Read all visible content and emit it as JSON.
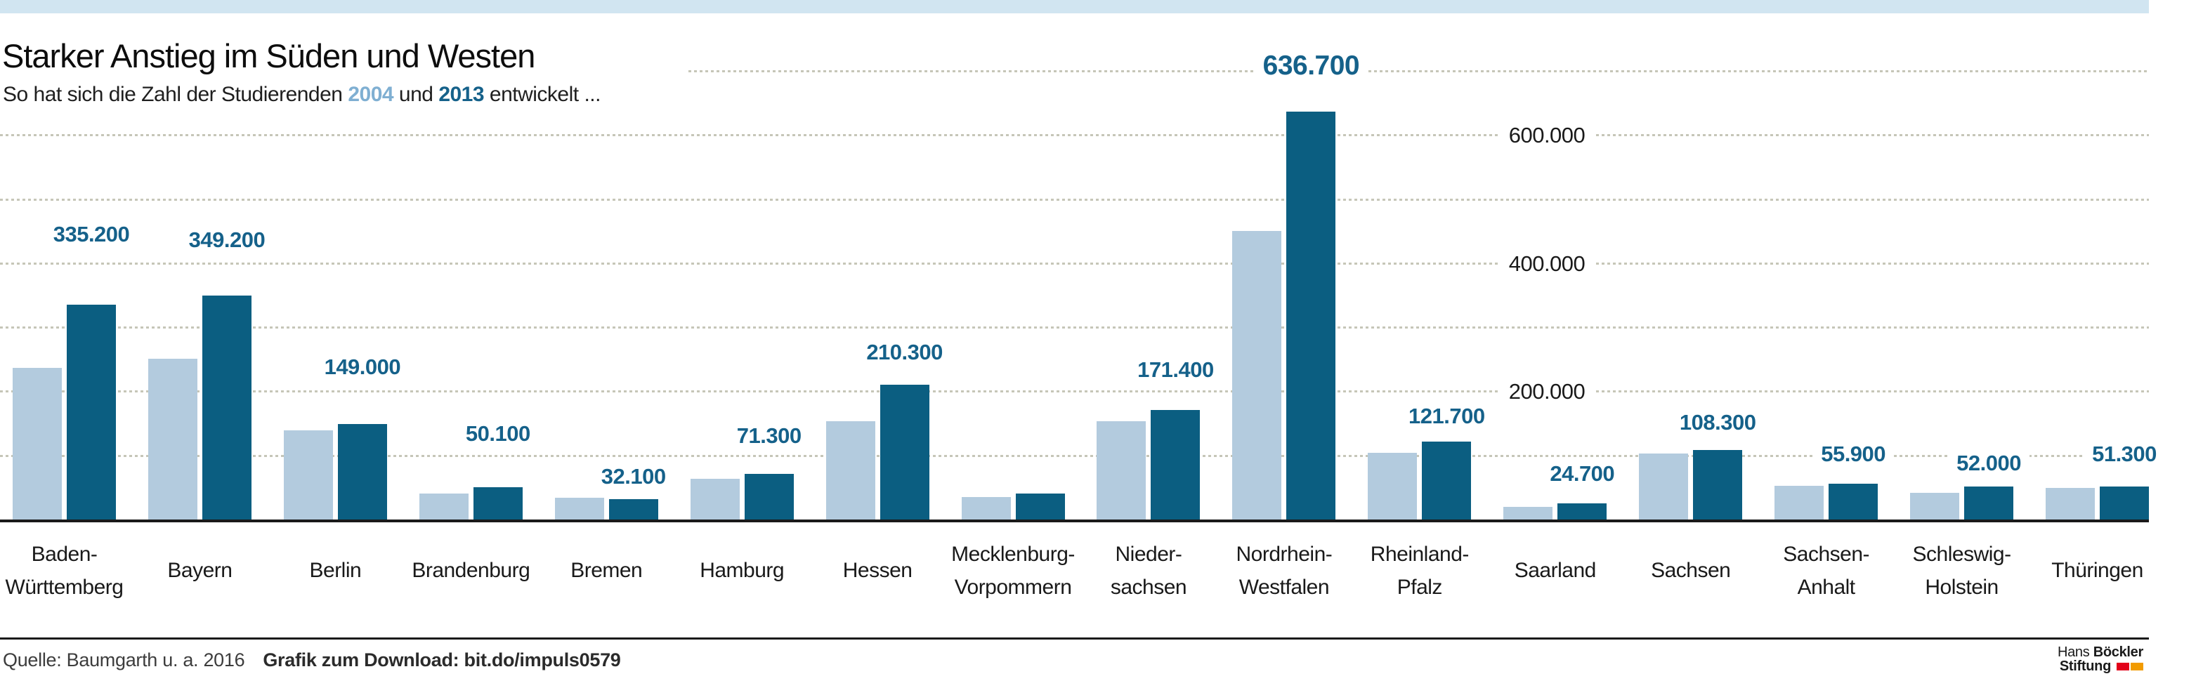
{
  "header": {
    "title": "Starker Anstieg im Süden und Westen",
    "subtitle": {
      "prefix": "So hat sich die Zahl der Studierenden ",
      "year1": "2004",
      "mid": " und ",
      "year2": "2013",
      "suffix": " entwickelt ..."
    }
  },
  "colors": {
    "band": "#d1e5f1",
    "bar_2004": "#b3cbde",
    "bar_2013": "#0b5e81",
    "value_label": "#15618a",
    "year_2004": "#7fafd2",
    "year_2013": "#15618a",
    "grid": "#c6c6b8",
    "logo_red": "#e2001a",
    "logo_orange": "#f29b00"
  },
  "footer": {
    "source": "Quelle: Baumgarth u. a. 2016",
    "download": "Grafik zum Download: bit.do/impuls0579"
  },
  "logo": {
    "name_regular": "Hans",
    "name_bold": "Böckler",
    "line2": "Stiftung"
  },
  "chart_data": {
    "type": "bar",
    "title": "Starker Anstieg im Süden und Westen",
    "subtitle": "So hat sich die Zahl der Studierenden 2004 und 2013 entwickelt ...",
    "series_names": [
      "2004",
      "2013"
    ],
    "ylim": [
      0,
      700000
    ],
    "grid": "dotted-horizontal",
    "legend_position": "none",
    "y_axis": {
      "gridline_step": 100000,
      "gridline_max": 700000,
      "ticks": [
        {
          "value": 600000,
          "label": "600.000"
        },
        {
          "value": 400000,
          "label": "400.000"
        },
        {
          "value": 200000,
          "label": "200.000"
        }
      ]
    },
    "states": [
      {
        "name": "Baden-Württemberg",
        "label_lines": [
          "Baden-",
          "Württemberg"
        ],
        "v2004": 237000,
        "v2013": 335200,
        "label_2013": "335.200"
      },
      {
        "name": "Bayern",
        "label_lines": [
          "Bayern"
        ],
        "v2004": 251000,
        "v2013": 349200,
        "label_2013": "349.200"
      },
      {
        "name": "Berlin",
        "label_lines": [
          "Berlin"
        ],
        "v2004": 139500,
        "v2013": 149000,
        "label_2013": "149.000"
      },
      {
        "name": "Brandenburg",
        "label_lines": [
          "Brandenburg"
        ],
        "v2004": 41000,
        "v2013": 50100,
        "label_2013": "50.100"
      },
      {
        "name": "Bremen",
        "label_lines": [
          "Bremen"
        ],
        "v2004": 34500,
        "v2013": 32100,
        "label_2013": "32.100"
      },
      {
        "name": "Hamburg",
        "label_lines": [
          "Hamburg"
        ],
        "v2004": 63000,
        "v2013": 71300,
        "label_2013": "71.300"
      },
      {
        "name": "Hessen",
        "label_lines": [
          "Hessen"
        ],
        "v2004": 153000,
        "v2013": 210300,
        "label_2013": "210.300"
      },
      {
        "name": "Mecklenburg-Vorpommern",
        "label_lines": [
          "Mecklenburg-",
          "Vorpommern"
        ],
        "v2004": 34700,
        "v2013": 40200,
        "label_2013": null
      },
      {
        "name": "Niedersachsen",
        "label_lines": [
          "Nieder-",
          "sachsen"
        ],
        "v2004": 153000,
        "v2013": 171400,
        "label_2013": "171.400"
      },
      {
        "name": "Nordrhein-Westfalen",
        "label_lines": [
          "Nordrhein-",
          "Westfalen"
        ],
        "v2004": 450000,
        "v2013": 636700,
        "label_2013": "636.700"
      },
      {
        "name": "Rheinland-Pfalz",
        "label_lines": [
          "Rheinland-",
          "Pfalz"
        ],
        "v2004": 104000,
        "v2013": 121700,
        "label_2013": "121.700"
      },
      {
        "name": "Saarland",
        "label_lines": [
          "Saarland"
        ],
        "v2004": 19700,
        "v2013": 24700,
        "label_2013": "24.700"
      },
      {
        "name": "Sachsen",
        "label_lines": [
          "Sachsen"
        ],
        "v2004": 103500,
        "v2013": 108300,
        "label_2013": "108.300"
      },
      {
        "name": "Sachsen-Anhalt",
        "label_lines": [
          "Sachsen-",
          "Anhalt"
        ],
        "v2004": 52500,
        "v2013": 55900,
        "label_2013": "55.900"
      },
      {
        "name": "Schleswig-Holstein",
        "label_lines": [
          "Schleswig-",
          "Holstein"
        ],
        "v2004": 42000,
        "v2013": 52000,
        "label_2013": "52.000"
      },
      {
        "name": "Thüringen",
        "label_lines": [
          "Thüringen"
        ],
        "v2004": 49300,
        "v2013": 51300,
        "label_2013": "51.300"
      }
    ]
  }
}
